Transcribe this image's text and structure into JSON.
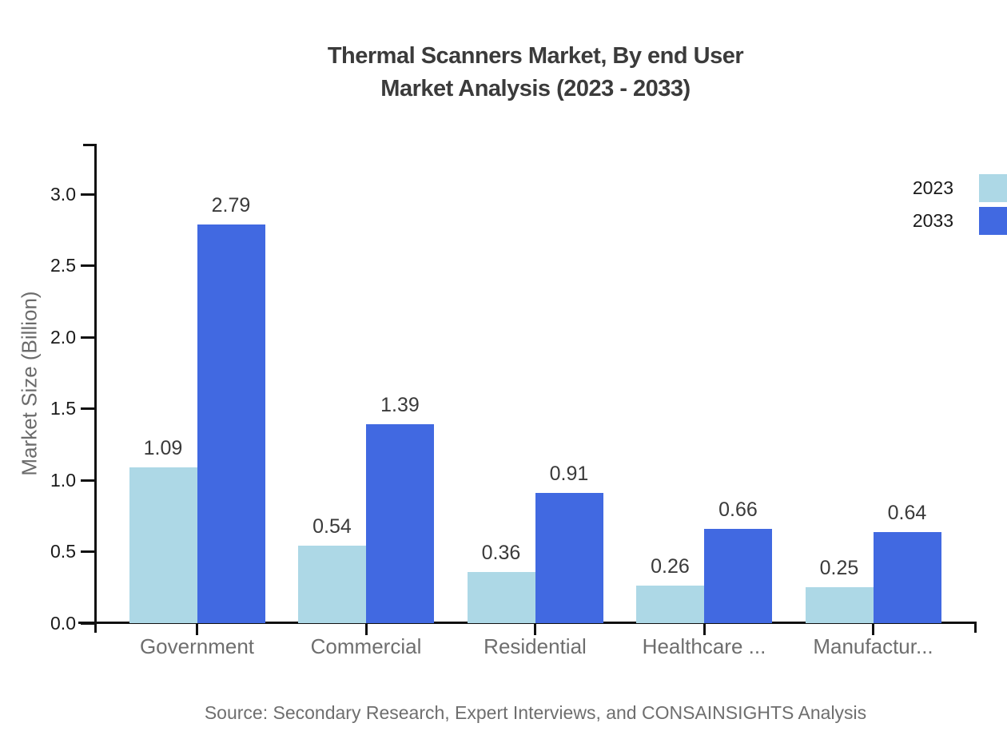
{
  "title": {
    "line1": "Thermal Scanners Market, By end User",
    "line2": "Market Analysis (2023 - 2033)"
  },
  "source": "Source: Secondary Research, Expert Interviews, and CONSAINSIGHTS Analysis",
  "legend": [
    {
      "label": "2023",
      "color": "#add8e6"
    },
    {
      "label": "2033",
      "color": "#4169e1"
    }
  ],
  "chart_data": {
    "type": "bar",
    "categories": [
      "Government",
      "Commercial",
      "Residential",
      "Healthcare ...",
      "Manufactur..."
    ],
    "series": [
      {
        "name": "2023",
        "color": "#add8e6",
        "values": [
          1.09,
          0.54,
          0.36,
          0.26,
          0.25
        ]
      },
      {
        "name": "2033",
        "color": "#4169e1",
        "values": [
          2.79,
          1.39,
          0.91,
          0.66,
          0.64
        ]
      }
    ],
    "title": "Thermal Scanners Market, By end User Market Analysis (2023 - 2033)",
    "xlabel": "",
    "ylabel": "Market Size (Billion)",
    "ylim": [
      0,
      3.35
    ],
    "yticks": [
      0.0,
      0.5,
      1.0,
      1.5,
      2.0,
      2.5,
      3.0
    ],
    "grid": false,
    "legend_position": "top-right",
    "value_labels": true
  }
}
